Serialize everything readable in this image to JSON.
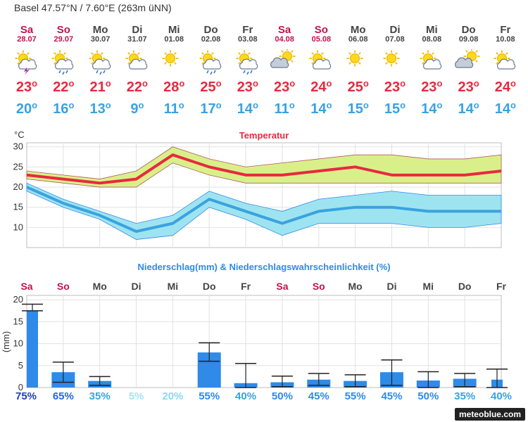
{
  "location": "Basel  47.57°N / 7.60°E (263m üNN)",
  "forecast": {
    "days": [
      {
        "name": "Sa",
        "date": "28.07",
        "weekend": true,
        "icon": "sun-cloud-thunder-icon",
        "tmax": "23",
        "tmin": "20"
      },
      {
        "name": "So",
        "date": "29.07",
        "weekend": true,
        "icon": "sun-cloud-rain-icon",
        "tmax": "22",
        "tmin": "16"
      },
      {
        "name": "Mo",
        "date": "30.07",
        "weekend": false,
        "icon": "sun-cloud-rain-icon",
        "tmax": "21",
        "tmin": "13"
      },
      {
        "name": "Di",
        "date": "31.07",
        "weekend": false,
        "icon": "sun-cloud-icon",
        "tmax": "22",
        "tmin": "9"
      },
      {
        "name": "Mi",
        "date": "01.08",
        "weekend": false,
        "icon": "sun-icon",
        "tmax": "28",
        "tmin": "11"
      },
      {
        "name": "Do",
        "date": "02.08",
        "weekend": false,
        "icon": "sun-cloud-rain-icon",
        "tmax": "25",
        "tmin": "17"
      },
      {
        "name": "Fr",
        "date": "03.08",
        "weekend": false,
        "icon": "sun-cloud-rain-icon",
        "tmax": "23",
        "tmin": "14"
      },
      {
        "name": "Sa",
        "date": "04.08",
        "weekend": true,
        "icon": "cloud-sun-icon",
        "tmax": "23",
        "tmin": "11"
      },
      {
        "name": "So",
        "date": "05.08",
        "weekend": true,
        "icon": "sun-cloud-icon",
        "tmax": "24",
        "tmin": "14"
      },
      {
        "name": "Mo",
        "date": "06.08",
        "weekend": false,
        "icon": "sun-icon",
        "tmax": "25",
        "tmin": "15"
      },
      {
        "name": "Di",
        "date": "07.08",
        "weekend": false,
        "icon": "sun-icon",
        "tmax": "23",
        "tmin": "15"
      },
      {
        "name": "Mi",
        "date": "08.08",
        "weekend": false,
        "icon": "sun-cloud-icon",
        "tmax": "23",
        "tmin": "14"
      },
      {
        "name": "Do",
        "date": "09.08",
        "weekend": false,
        "icon": "cloud-sun-icon",
        "tmax": "23",
        "tmin": "14"
      },
      {
        "name": "Fr",
        "date": "10.08",
        "weekend": false,
        "icon": "sun-cloud-icon",
        "tmax": "24",
        "tmin": "14"
      }
    ]
  },
  "colors": {
    "weekend": "#c0124f",
    "weekday": "#444444",
    "tmax": "#e8293f",
    "tmin": "#3aa2e0",
    "maxBand": "#d9f08a",
    "minBand": "#9ee4f0",
    "bar": "#2f8ae8"
  },
  "chart_data": [
    {
      "type": "line",
      "title": "Temperatur",
      "ylabel": "°C",
      "ylim": [
        5,
        31
      ],
      "yticks": [
        10,
        15,
        20,
        25,
        30
      ],
      "x": [
        "28.07",
        "29.07",
        "30.07",
        "31.07",
        "01.08",
        "02.08",
        "03.08",
        "04.08",
        "05.08",
        "06.08",
        "07.08",
        "08.08",
        "09.08",
        "10.08"
      ],
      "series": [
        {
          "key": "tmax",
          "values": [
            23,
            22,
            21,
            22,
            28,
            25,
            23,
            23,
            24,
            25,
            23,
            23,
            23,
            24
          ],
          "band_upper": [
            24,
            23,
            22,
            24,
            30,
            27,
            25,
            26,
            27,
            28,
            28,
            27,
            27,
            28
          ],
          "band_lower": [
            22,
            21,
            20,
            20,
            26,
            23,
            21,
            21,
            21,
            21,
            21,
            21,
            21,
            21
          ]
        },
        {
          "key": "tmin",
          "values": [
            20,
            16,
            13,
            9,
            11,
            17,
            14,
            11,
            14,
            15,
            15,
            14,
            14,
            14
          ],
          "band_upper": [
            21,
            17,
            14,
            11,
            13,
            19,
            16,
            14,
            17,
            18,
            19,
            18,
            18,
            18
          ],
          "band_lower": [
            19,
            15,
            12,
            7,
            8,
            15,
            12,
            8,
            11,
            11,
            11,
            10,
            10,
            11
          ]
        }
      ],
      "grid": true
    },
    {
      "type": "bar",
      "title": "Niederschlag(mm) & Niederschlagswahrscheinlichkeit (%)",
      "ylabel": "(mm)",
      "ylim": [
        0,
        21
      ],
      "yticks": [
        0,
        5,
        10,
        15,
        20
      ],
      "categories": [
        "Sa",
        "So",
        "Mo",
        "Di",
        "Mi",
        "Do",
        "Fr",
        "Sa",
        "So",
        "Mo",
        "Di",
        "Mi",
        "Do",
        "Fr"
      ],
      "values": [
        17.5,
        3.5,
        1.5,
        0,
        0,
        8,
        1,
        1.2,
        1.8,
        1.5,
        3.5,
        1.6,
        2,
        1.8
      ],
      "error_high": [
        19,
        5.8,
        2.5,
        0,
        0,
        10.2,
        5.5,
        2.6,
        3.2,
        2.9,
        6.3,
        3.6,
        3.2,
        4.2
      ],
      "error_low": [
        17.5,
        1.2,
        0.5,
        0,
        0,
        6,
        0,
        0.2,
        0.5,
        0.2,
        0.5,
        0,
        0.2,
        0
      ],
      "probability_labels": [
        "75%",
        "65%",
        "35%",
        "5%",
        "20%",
        "55%",
        "40%",
        "50%",
        "45%",
        "55%",
        "45%",
        "50%",
        "35%",
        "40%"
      ],
      "probability_colors": [
        "#1d3fb5",
        "#2468d8",
        "#3aa2e0",
        "#a6e3f6",
        "#8bd7f2",
        "#2f8ae8",
        "#3aa2e0",
        "#2f8ae8",
        "#2f8ae8",
        "#2f8ae8",
        "#2f8ae8",
        "#2f8ae8",
        "#3aa2e0",
        "#3aa2e0"
      ],
      "grid": true
    }
  ],
  "watermark": "meteoblue.com"
}
